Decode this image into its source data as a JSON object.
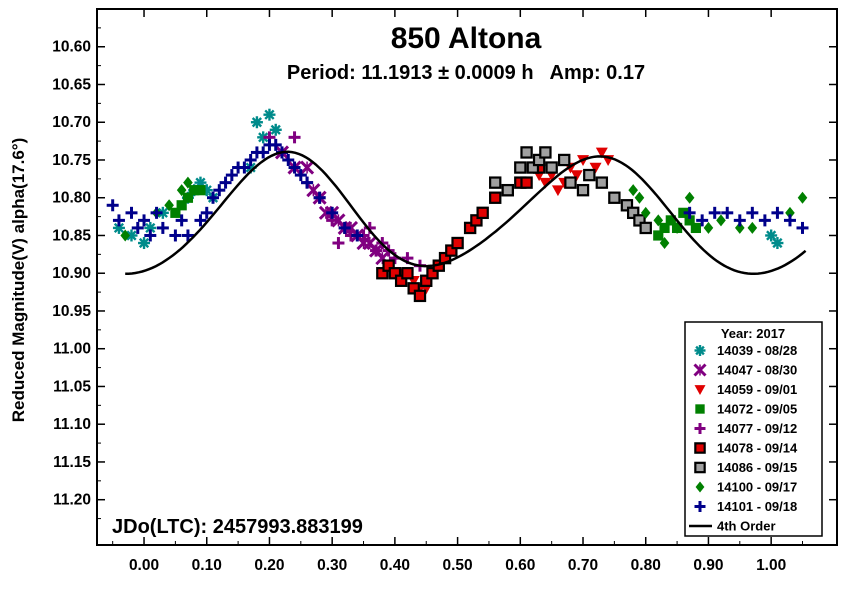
{
  "chart_data": {
    "type": "scatter",
    "title": "850 Altona",
    "subtitle": "Period: 11.1913 ± 0.0009 h   Amp: 0.17",
    "ylabel": "Reduced Magnitude(V) alpha(17.6°)",
    "xlabel": "",
    "annotation": "JDo(LTC): 2457993.883199",
    "xlim": [
      -0.075,
      1.105
    ],
    "ylim": [
      10.55,
      11.26
    ],
    "y_inverted": true,
    "grid": false,
    "legend_position": "bottom-right",
    "x_ticks": [
      {
        "value": 0.0,
        "label": "0.00"
      },
      {
        "value": 0.1,
        "label": "0.10"
      },
      {
        "value": 0.2,
        "label": "0.20"
      },
      {
        "value": 0.3,
        "label": "0.30"
      },
      {
        "value": 0.4,
        "label": "0.40"
      },
      {
        "value": 0.5,
        "label": "0.50"
      },
      {
        "value": 0.6,
        "label": "0.60"
      },
      {
        "value": 0.7,
        "label": "0.70"
      },
      {
        "value": 0.8,
        "label": "0.80"
      },
      {
        "value": 0.9,
        "label": "0.90"
      },
      {
        "value": 1.0,
        "label": "1.00"
      }
    ],
    "y_ticks": [
      {
        "value": 10.6,
        "label": "10.60"
      },
      {
        "value": 10.65,
        "label": "10.65"
      },
      {
        "value": 10.7,
        "label": "10.70"
      },
      {
        "value": 10.75,
        "label": "10.75"
      },
      {
        "value": 10.8,
        "label": "10.80"
      },
      {
        "value": 10.85,
        "label": "10.85"
      },
      {
        "value": 10.9,
        "label": "10.90"
      },
      {
        "value": 10.95,
        "label": "10.95"
      },
      {
        "value": 11.0,
        "label": "11.00"
      },
      {
        "value": 11.05,
        "label": "11.05"
      },
      {
        "value": 11.1,
        "label": "11.10"
      },
      {
        "value": 11.15,
        "label": "11.15"
      },
      {
        "value": 11.2,
        "label": "11.20"
      }
    ],
    "legend_title": "Year: 2017",
    "series": [
      {
        "name": "14039 - 08/28",
        "color": "#008b8b",
        "marker": "asterisk",
        "x": [
          -0.04,
          -0.02,
          0.0,
          0.01,
          0.03,
          0.07,
          0.08,
          0.09,
          0.1,
          0.11,
          0.17,
          0.18,
          0.19,
          0.2,
          0.21,
          1.0,
          1.01
        ],
        "y": [
          10.84,
          10.85,
          10.86,
          10.84,
          10.82,
          10.8,
          10.79,
          10.78,
          10.79,
          10.8,
          10.76,
          10.7,
          10.72,
          10.69,
          10.71,
          10.85,
          10.86
        ]
      },
      {
        "name": "14047 - 08/30",
        "color": "#800080",
        "marker": "x",
        "x": [
          0.22,
          0.24,
          0.26,
          0.27,
          0.28,
          0.29,
          0.3,
          0.31,
          0.32,
          0.33,
          0.34,
          0.35,
          0.36,
          0.37,
          0.38
        ],
        "y": [
          10.74,
          10.76,
          10.76,
          10.79,
          10.8,
          10.82,
          10.82,
          10.83,
          10.84,
          10.84,
          10.85,
          10.86,
          10.86,
          10.87,
          10.88
        ]
      },
      {
        "name": "14059 - 09/01",
        "color": "#e00000",
        "marker": "triangle",
        "x": [
          0.39,
          0.4,
          0.41,
          0.43,
          0.44,
          0.45,
          0.46,
          0.62,
          0.63,
          0.64,
          0.65,
          0.66,
          0.67,
          0.68,
          0.69,
          0.7,
          0.71,
          0.72,
          0.73,
          0.74
        ],
        "y": [
          10.89,
          10.9,
          10.9,
          10.91,
          10.92,
          10.92,
          10.9,
          10.76,
          10.77,
          10.78,
          10.77,
          10.79,
          10.78,
          10.76,
          10.77,
          10.75,
          10.77,
          10.76,
          10.74,
          10.75
        ]
      },
      {
        "name": "14072 - 09/05",
        "color": "#008000",
        "marker": "square",
        "x": [
          0.05,
          0.06,
          0.07,
          0.08,
          0.09,
          0.82,
          0.83,
          0.84,
          0.85,
          0.86,
          0.87,
          0.88
        ],
        "y": [
          10.82,
          10.81,
          10.8,
          10.79,
          10.79,
          10.85,
          10.84,
          10.83,
          10.84,
          10.82,
          10.83,
          10.84
        ]
      },
      {
        "name": "14077 - 09/12",
        "color": "#800080",
        "marker": "plus",
        "x": [
          0.2,
          0.22,
          0.24,
          0.26,
          0.28,
          0.3,
          0.31,
          0.32,
          0.33,
          0.35,
          0.36,
          0.37,
          0.38,
          0.39,
          0.4,
          0.42,
          0.44,
          0.48
        ],
        "y": [
          10.72,
          10.74,
          10.72,
          10.78,
          10.8,
          10.83,
          10.86,
          10.84,
          10.85,
          10.85,
          10.84,
          10.87,
          10.86,
          10.87,
          10.88,
          10.88,
          10.89,
          10.88
        ]
      },
      {
        "name": "14078 - 09/14",
        "color": "#e00000",
        "marker": "square-black",
        "x": [
          0.38,
          0.39,
          0.4,
          0.41,
          0.42,
          0.43,
          0.44,
          0.45,
          0.46,
          0.47,
          0.48,
          0.49,
          0.5,
          0.52,
          0.53,
          0.54,
          0.56,
          0.58,
          0.6,
          0.61,
          0.63
        ],
        "y": [
          10.9,
          10.89,
          10.9,
          10.91,
          10.9,
          10.92,
          10.93,
          10.91,
          10.9,
          10.89,
          10.88,
          10.87,
          10.86,
          10.84,
          10.83,
          10.82,
          10.8,
          10.79,
          10.78,
          10.78,
          10.76
        ]
      },
      {
        "name": "14086 - 09/15",
        "color": "#a0a0a0",
        "marker": "square-black",
        "x": [
          0.56,
          0.58,
          0.6,
          0.61,
          0.62,
          0.63,
          0.64,
          0.65,
          0.67,
          0.68,
          0.7,
          0.71,
          0.73,
          0.75,
          0.77,
          0.78,
          0.79,
          0.8
        ],
        "y": [
          10.78,
          10.79,
          10.76,
          10.74,
          10.76,
          10.75,
          10.74,
          10.76,
          10.75,
          10.78,
          10.79,
          10.77,
          10.78,
          10.8,
          10.81,
          10.82,
          10.83,
          10.84
        ]
      },
      {
        "name": "14100 - 09/17",
        "color": "#008000",
        "marker": "diamond",
        "x": [
          -0.03,
          0.02,
          0.04,
          0.06,
          0.07,
          0.78,
          0.79,
          0.8,
          0.82,
          0.83,
          0.85,
          0.87,
          0.9,
          0.92,
          0.95,
          0.97,
          1.03,
          1.05
        ],
        "y": [
          10.85,
          10.82,
          10.81,
          10.79,
          10.78,
          10.79,
          10.8,
          10.82,
          10.83,
          10.86,
          10.84,
          10.8,
          10.84,
          10.83,
          10.84,
          10.84,
          10.82,
          10.8
        ]
      },
      {
        "name": "14101 - 09/18",
        "color": "#00008b",
        "marker": "plus",
        "x": [
          -0.05,
          -0.04,
          -0.02,
          -0.01,
          0.0,
          0.01,
          0.02,
          0.03,
          0.05,
          0.06,
          0.07,
          0.09,
          0.1,
          0.11,
          0.12,
          0.13,
          0.14,
          0.15,
          0.16,
          0.17,
          0.18,
          0.19,
          0.2,
          0.21,
          0.22,
          0.23,
          0.24,
          0.25,
          0.26,
          0.28,
          0.3,
          0.32,
          0.34,
          0.87,
          0.89,
          0.91,
          0.93,
          0.95,
          0.97,
          0.99,
          1.01,
          1.03,
          1.05
        ],
        "y": [
          10.81,
          10.83,
          10.82,
          10.84,
          10.83,
          10.85,
          10.82,
          10.84,
          10.85,
          10.83,
          10.85,
          10.83,
          10.82,
          10.8,
          10.79,
          10.78,
          10.77,
          10.76,
          10.76,
          10.75,
          10.74,
          10.74,
          10.73,
          10.73,
          10.74,
          10.75,
          10.76,
          10.77,
          10.78,
          10.8,
          10.82,
          10.84,
          10.85,
          10.82,
          10.83,
          10.82,
          10.82,
          10.83,
          10.82,
          10.83,
          10.82,
          10.83,
          10.84
        ]
      }
    ],
    "fit": {
      "name": "4th Order",
      "color": "#000000",
      "mean": 10.823,
      "a1": 0.006,
      "b1": 0.001,
      "a2": 0.071,
      "b2": -0.027,
      "a3": 0.003,
      "b3": 0.004,
      "a4": -0.006,
      "b4": 0.0
    }
  }
}
